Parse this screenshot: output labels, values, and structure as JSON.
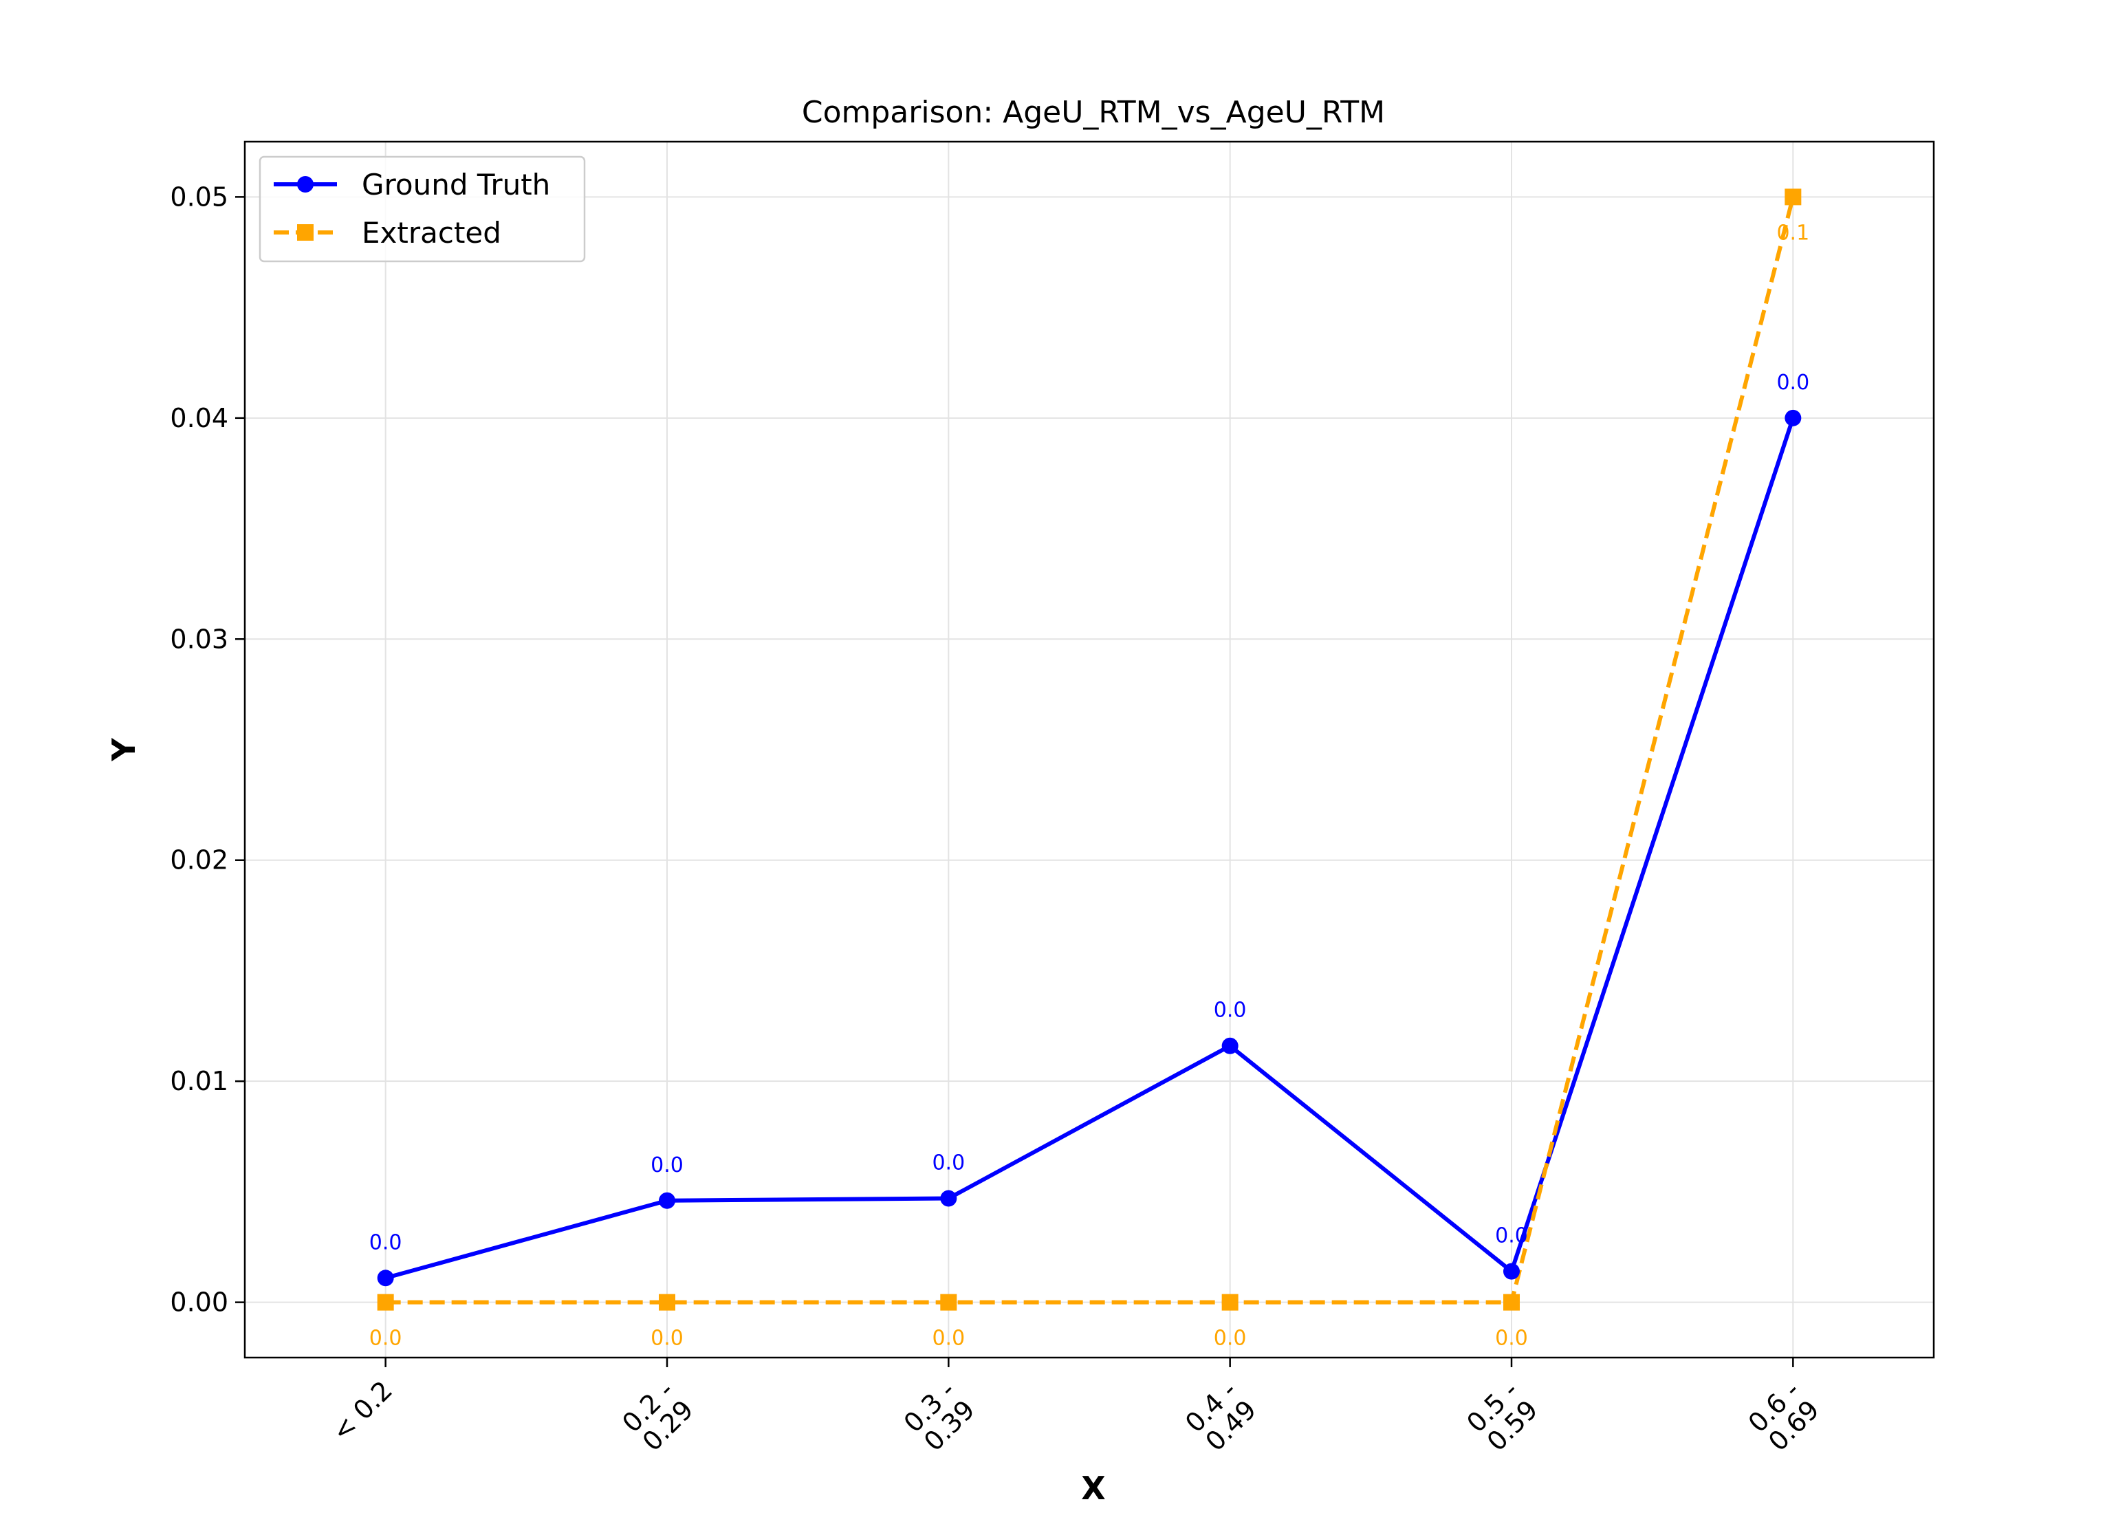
{
  "chart_data": {
    "type": "line",
    "title": "Comparison: AgeU_RTM_vs_AgeU_RTM",
    "xlabel": "X",
    "ylabel": "Y",
    "categories": [
      "< 0.2",
      "0.2 -\n0.29",
      "0.3 -\n0.39",
      "0.4 -\n0.49",
      "0.5 -\n0.59",
      "0.6 -\n0.69"
    ],
    "ylim": [
      -0.0025,
      0.0525
    ],
    "yticks": [
      0.0,
      0.01,
      0.02,
      0.03,
      0.04,
      0.05
    ],
    "ytick_labels": [
      "0.00",
      "0.01",
      "0.02",
      "0.03",
      "0.04",
      "0.05"
    ],
    "grid": true,
    "legend_position": "top-left",
    "series": [
      {
        "name": "Ground Truth",
        "color": "#0000ff",
        "line_style": "solid",
        "marker": "circle",
        "values": [
          0.0011,
          0.0046,
          0.0047,
          0.0116,
          0.0014,
          0.04
        ],
        "labels": [
          "0.0",
          "0.0",
          "0.0",
          "0.0",
          "0.0",
          "0.0"
        ]
      },
      {
        "name": "Extracted",
        "color": "#ffa500",
        "line_style": "dashed",
        "marker": "square",
        "values": [
          0.0,
          0.0,
          0.0,
          0.0,
          0.0,
          0.05
        ],
        "labels": [
          "0.0",
          "0.0",
          "0.0",
          "0.0",
          "0.0",
          "0.1"
        ]
      }
    ]
  }
}
